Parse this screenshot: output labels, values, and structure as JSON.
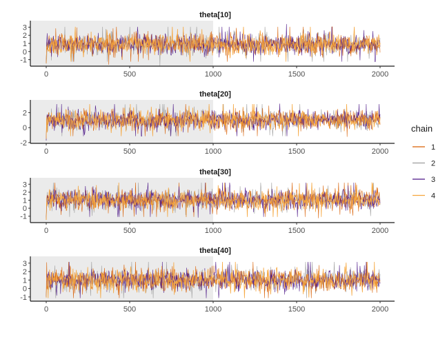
{
  "chart_data": {
    "type": "line",
    "chart_kind": "MCMC trace plot",
    "x_ticks": [
      0,
      500,
      1000,
      1500,
      2000
    ],
    "xlim": [
      0,
      2000
    ],
    "warmup_shaded_until": 1000,
    "legend": {
      "title": "chain",
      "position": "right",
      "entries": [
        {
          "label": "1",
          "color": "#d95f02"
        },
        {
          "label": "2",
          "color": "#9c9c9c"
        },
        {
          "label": "3",
          "color": "#4a1486"
        },
        {
          "label": "4",
          "color": "#f5a43a"
        }
      ]
    },
    "panels": [
      {
        "title": "theta[10]",
        "y_ticks": [
          -1,
          0,
          1,
          2,
          3
        ],
        "ylim": [
          -1.8,
          3.8
        ],
        "mean": 0.9,
        "sd": 0.65
      },
      {
        "title": "theta[20]",
        "y_ticks": [
          -2,
          0,
          2
        ],
        "ylim": [
          -2.1,
          3.7
        ],
        "mean": 1.0,
        "sd": 0.65
      },
      {
        "title": "theta[30]",
        "y_ticks": [
          -1,
          0,
          1,
          2,
          3
        ],
        "ylim": [
          -1.8,
          3.8
        ],
        "mean": 1.05,
        "sd": 0.65
      },
      {
        "title": "theta[40]",
        "y_ticks": [
          -1,
          0,
          1,
          2,
          3
        ],
        "ylim": [
          -1.5,
          3.8
        ],
        "mean": 1.0,
        "sd": 0.65
      }
    ]
  }
}
